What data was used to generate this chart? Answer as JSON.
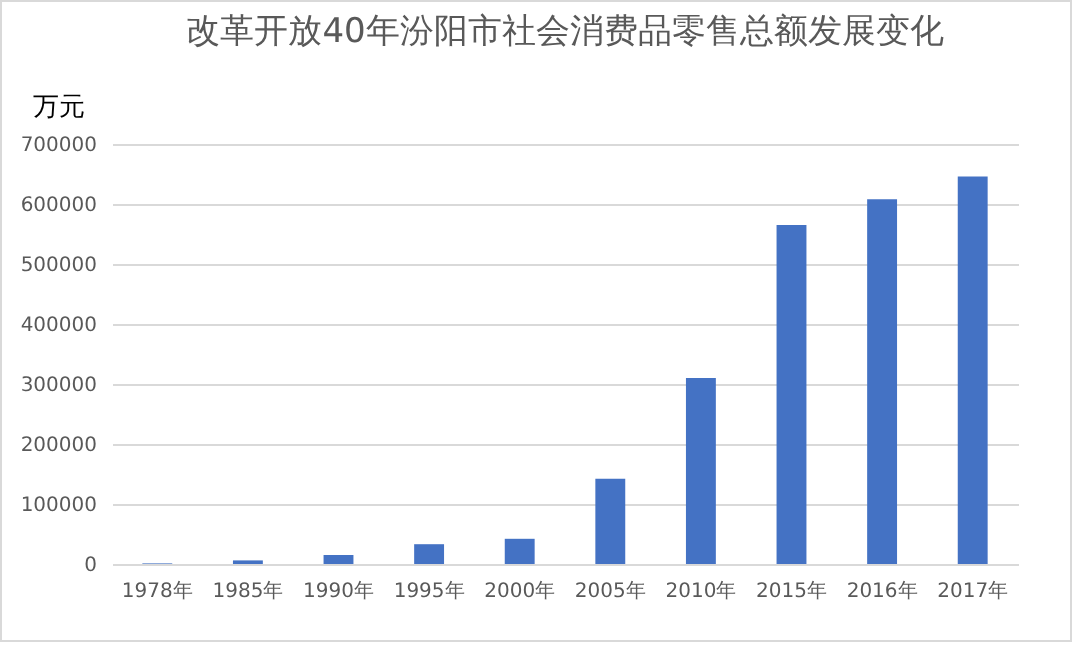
{
  "chart_data": {
    "type": "bar",
    "title": "改革开放40年汾阳市社会消费品零售总额发展变化",
    "ylabel": "万元",
    "categories": [
      "1978年",
      "1985年",
      "1990年",
      "1995年",
      "2000年",
      "2005年",
      "2010年",
      "2015年",
      "2016年",
      "2017年"
    ],
    "values": [
      1000,
      6000,
      15000,
      33000,
      42000,
      142000,
      310000,
      565000,
      608000,
      646000
    ],
    "color": "#4472c4",
    "ylim": [
      0,
      700000
    ],
    "yticks": [
      0,
      100000,
      200000,
      300000,
      400000,
      500000,
      600000,
      700000
    ],
    "grid": "y"
  }
}
